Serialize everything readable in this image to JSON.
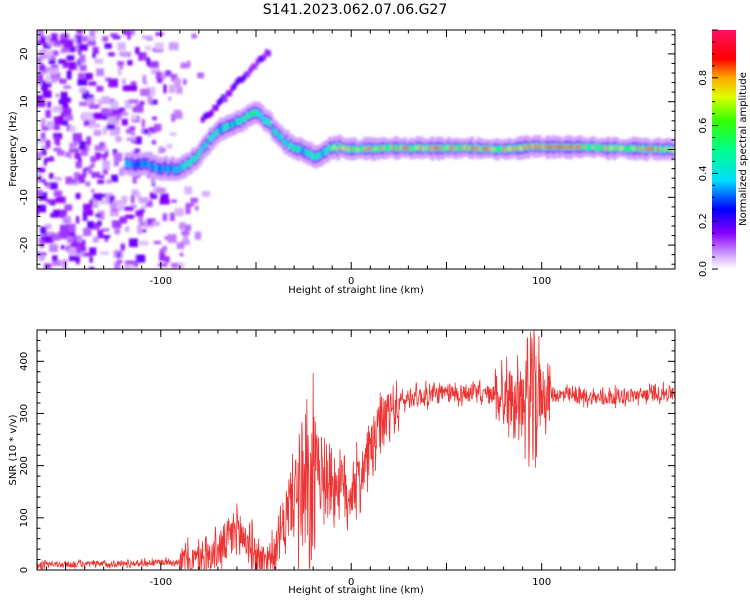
{
  "title": "S141.2023.062.07.06.G27",
  "chart_data": [
    {
      "type": "heatmap",
      "xlabel": "Height of straight line (km)",
      "ylabel": "Frequency (Hz)",
      "xlim": [
        -165,
        170
      ],
      "ylim": [
        -25,
        25
      ],
      "xticks": [
        -100,
        0,
        100
      ],
      "yticks": [
        -20,
        -10,
        0,
        10,
        20
      ],
      "colorbar": {
        "label": "Normalized spectral amplitude",
        "range": [
          0,
          1
        ],
        "ticks": [
          0.0,
          0.2,
          0.4,
          0.6,
          0.8
        ],
        "tick_labels": [
          "0.0",
          "0.2",
          "0.4",
          "0.6",
          "0.8"
        ],
        "colormap": "rainbow (white-violet-blue-cyan-green-yellow-red-pink)"
      },
      "ridge": {
        "x": [
          -110,
          -100,
          -90,
          -82,
          -76,
          -70,
          -64,
          -58,
          -52,
          -48,
          -44,
          -40,
          -36,
          -30,
          -24,
          -18,
          -12,
          -6,
          0,
          20,
          40,
          60,
          80,
          95,
          120,
          150,
          170
        ],
        "y": [
          -3,
          -4,
          -4,
          -2,
          1,
          4,
          5,
          6,
          7.5,
          7.5,
          6,
          4,
          2,
          0.5,
          -0.5,
          -1.5,
          0,
          0.5,
          0,
          0.3,
          0.3,
          0.3,
          0,
          0.6,
          0.5,
          0.2,
          0
        ],
        "peak_amplitude_region": [
          -10,
          170
        ]
      },
      "noise_region": [
        -165,
        -95
      ]
    },
    {
      "type": "line",
      "xlabel": "Height of straight line (km)",
      "ylabel": "SNR (10 * v/v)",
      "xlim": [
        -165,
        170
      ],
      "ylim": [
        0,
        460
      ],
      "xticks": [
        -100,
        0,
        100
      ],
      "yticks": [
        0,
        100,
        200,
        300,
        400
      ],
      "series": [
        {
          "color": "#ee3333",
          "envelope_x": [
            -165,
            -120,
            -90,
            -80,
            -72,
            -64,
            -60,
            -55,
            -48,
            -40,
            -35,
            -30,
            -25,
            -22,
            -20,
            -15,
            -10,
            -5,
            0,
            5,
            10,
            15,
            20,
            25,
            30,
            40,
            60,
            75,
            85,
            95,
            100,
            110,
            130,
            150,
            170
          ],
          "envelope_y": [
            10,
            12,
            16,
            20,
            30,
            60,
            80,
            55,
            20,
            30,
            90,
            160,
            130,
            120,
            160,
            190,
            170,
            160,
            150,
            180,
            230,
            270,
            300,
            320,
            330,
            335,
            340,
            335,
            330,
            320,
            340,
            335,
            330,
            335,
            340
          ]
        }
      ]
    }
  ]
}
